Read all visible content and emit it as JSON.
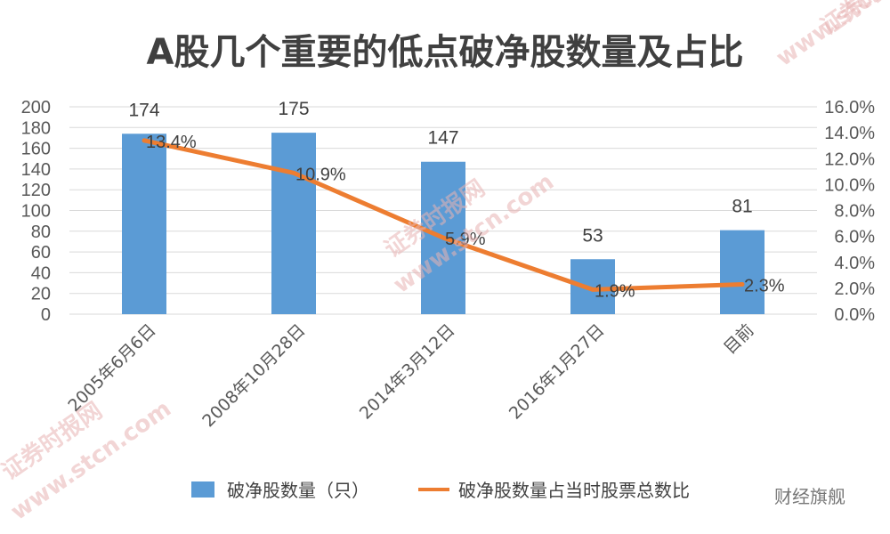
{
  "chart_data": {
    "type": "bar",
    "title": "A股几个重要的低点破净股数量及占比",
    "categories": [
      "2005年6月6日",
      "2008年10月28日",
      "2014年3月12日",
      "2016年1月27日",
      "目前"
    ],
    "series": [
      {
        "name": "破净股数量（只）",
        "type": "bar",
        "axis": "left",
        "color": "#5b9bd5",
        "values": [
          174,
          175,
          147,
          53,
          81
        ],
        "labels": [
          "174",
          "175",
          "147",
          "53",
          "81"
        ]
      },
      {
        "name": "破净股数量占当时股票总数比",
        "type": "line",
        "axis": "right",
        "color": "#ed7d31",
        "values": [
          0.134,
          0.109,
          0.059,
          0.019,
          0.023
        ],
        "labels": [
          "13.4%",
          "10.9%",
          "5.9%",
          "1.9%",
          "2.3%"
        ]
      }
    ],
    "y_left": {
      "lim": [
        0,
        200
      ],
      "ticks": [
        "0",
        "20",
        "40",
        "60",
        "80",
        "100",
        "120",
        "140",
        "160",
        "180",
        "200"
      ]
    },
    "y_right": {
      "lim": [
        0,
        0.16
      ],
      "ticks": [
        "0.0%",
        "2.0%",
        "4.0%",
        "6.0%",
        "8.0%",
        "10.0%",
        "12.0%",
        "14.0%",
        "16.0%"
      ]
    },
    "grid": true,
    "legend_position": "bottom"
  },
  "watermark": {
    "text": "证券时报网",
    "url": "www.stcn.com",
    "source": "财经旗舰",
    "color": "#e8b4b4"
  }
}
